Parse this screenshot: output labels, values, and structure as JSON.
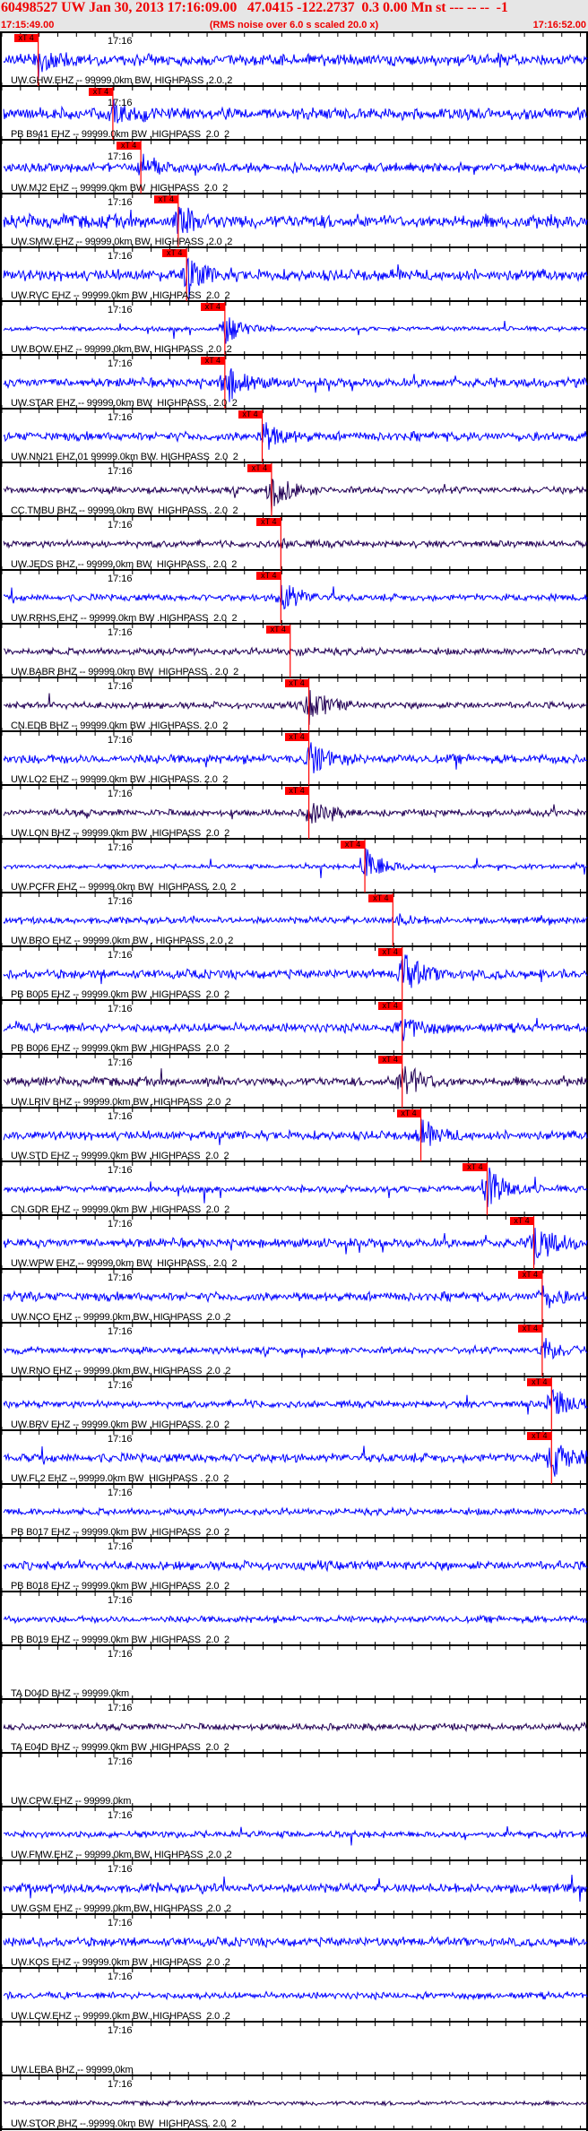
{
  "header": {
    "title": "60498527 UW Jan 30, 2013 17:16:09.00   47.0415 -122.2737  0.3 0.00 Mn st --- -- --  -1",
    "start_time": "17:15:49.00",
    "end_time": "17:16:52.00",
    "rms_note": "(RMS noise over 6.0 s scaled 20.0 x)"
  },
  "axis": {
    "minute_label": "17:16"
  },
  "pick_label": "xT 4",
  "colors": {
    "header_text": "#ee0000",
    "trace": "#0000ff",
    "trace_broadband": "#220055",
    "pick": "#ff0000",
    "header_bg": "#e6e6e6"
  },
  "panels": [
    {
      "label": "UW.GHW.EHZ -- 99999.0km BW. HIGHPASS .2.0. 2",
      "trace": "blue",
      "pick_time": "17:15:52.9"
    },
    {
      "label": "PB B941 EHZ -- 99999.0km BW .HIGHPASS  2.0  2",
      "trace": "blue",
      "pick_time": "17:16:00.9"
    },
    {
      "label": "UW.MJ2 EHZ -- 99999.0km BW  HIGHPASS  2.0  2",
      "trace": "blue",
      "pick_time": "17:16:03.9"
    },
    {
      "label": "UW.SMW.EHZ -- 99999.0km BW. HIGHPASS .2.0 .2",
      "trace": "blue",
      "pick_time": "17:16:07.9"
    },
    {
      "label": "UW.RVC EHZ -- 99999.0km BW .HIGHPASS  2.0  2",
      "trace": "blue",
      "pick_time": "17:16:08.8"
    },
    {
      "label": "UW.BOW.EHZ -- 99999.0km BW. HIGHPASS  2.0 .2",
      "trace": "blue",
      "pick_time": "17:16:12.9"
    },
    {
      "label": "UW.STAR EHZ -- 99999.0km BW  HIGHPASS . 2.0  2",
      "trace": "blue",
      "pick_time": "17:16:12.9"
    },
    {
      "label": "UW.NN21 EHZ.01 99999.0km BW. HIGHPASS  2.0  2",
      "trace": "blue",
      "pick_time": "17:16:16.9"
    },
    {
      "label": "CC.TMBU BHZ -- 99999.0km BW  HIGHPASS . 2.0  2",
      "trace": "dark",
      "pick_time": "17:16:17.9"
    },
    {
      "label": "UW.JEDS BHZ -- 99999.0km BW  HIGHPASS . 2.0  2",
      "trace": "dark",
      "pick_time": "17:16:18.9"
    },
    {
      "label": "UW.RRHS EHZ -- 99999.0km BW .HIGHPASS  2.0  2",
      "trace": "blue",
      "pick_time": "17:16:18.9"
    },
    {
      "label": "UW.BABR BHZ -- 99999.0km BW  HIGHPASS . 2.0  2",
      "trace": "dark",
      "pick_time": "17:16:19.9"
    },
    {
      "label": "CN.EDB BHZ -- 99999.0km BW .HIGHPASS. 2.0  2",
      "trace": "dark",
      "pick_time": "17:16:21.9"
    },
    {
      "label": "UW.LO2 EHZ -- 99999.0km BW .HIGHPASS. 2.0  2",
      "trace": "blue",
      "pick_time": "17:16:21.9"
    },
    {
      "label": "UW.LON BHZ -- 99999.0km BW .HIGHPASS  2.0  2",
      "trace": "dark",
      "pick_time": "17:16:21.9"
    },
    {
      "label": "UW.PCFR EHZ -- 99999.0km BW  HIGHPASS. 2.0  2",
      "trace": "blue",
      "pick_time": "17:16:27.9"
    },
    {
      "label": "UW.BRO EHZ -- 99999.0km BW . HIGHPASS  2.0  2",
      "trace": "blue",
      "pick_time": "17:16:30.9"
    },
    {
      "label": "PB B005 EHZ -- 99999.0km BW .HIGHPASS  2.0  2",
      "trace": "blue",
      "pick_time": "17:16:31.9"
    },
    {
      "label": "PB B006 EHZ -- 99999.0km BW .HIGHPASS  2.0  2",
      "trace": "blue",
      "pick_time": "17:16:31.9"
    },
    {
      "label": "UW.LRIV BHZ -- 99999.0km BW .HIGHPASS  2.0  2",
      "trace": "dark",
      "pick_time": "17:16:31.9"
    },
    {
      "label": "UW.STD EHZ -- 99999.0km BW .HIGHPASS  2.0  2",
      "trace": "blue",
      "pick_time": "17:16:33.9"
    },
    {
      "label": "CN.GDR EHZ -- 99999.0km BW .HIGHPASS  2.0  2",
      "trace": "blue",
      "pick_time": "17:16:41.0"
    },
    {
      "label": "UW.WPW EHZ -- 99999.0km BW  HIGHPASS . 2.0  2",
      "trace": "blue",
      "pick_time": "17:16:46.0"
    },
    {
      "label": "UW.NCO EHZ -- 99999.0km BW. HIGHPASS  2.0 .2",
      "trace": "blue",
      "pick_time": "17:16:46.9"
    },
    {
      "label": "UW.RNO EHZ -- 99999.0km BW. HIGHPASS  2.0 .2",
      "trace": "blue",
      "pick_time": "17:16:46.9"
    },
    {
      "label": "UW.BRV EHZ -- 99999.0km BW .HIGHPASS. 2.0  2",
      "trace": "blue",
      "pick_time": "17:16:47.9"
    },
    {
      "label": "UW.FL2 EHZ -- 99999.0km BW  HIGHPASS . 2.0  2",
      "trace": "blue",
      "pick_time": "17:16:47.9"
    },
    {
      "label": "PB B017 EHZ -- 99999.0km BW .HIGHPASS  2.0  2",
      "trace": "blue"
    },
    {
      "label": "PB B018 EHZ -- 99999.0km BW .HIGHPASS  2.0  2",
      "trace": "blue"
    },
    {
      "label": "PB B019 EHZ -- 99999.0km BW .HIGHPASS  2.0  2",
      "trace": "blue"
    },
    {
      "label": "TA D04D BHZ -- 99999.0km",
      "trace": "none"
    },
    {
      "label": "TA E04D BHZ -- 99999.0km BW .HIGHPASS  2.0  2",
      "trace": "dark"
    },
    {
      "label": "UW.CPW.EHZ -- 99999.0km",
      "trace": "none"
    },
    {
      "label": "UW.FMW.EHZ -- 99999.0km BW. HIGHPASS  2.0 .2",
      "trace": "blue"
    },
    {
      "label": "UW.GSM EHZ -- 99999.0km BW. HIGHPASS  2.0 .2",
      "trace": "blue"
    },
    {
      "label": "UW.KOS EHZ -- 99999.0km BW .HIGHPASS  2.0 .2",
      "trace": "blue"
    },
    {
      "label": "UW.LCW.EHZ -- 99999.0km BW. HIGHPASS  2.0 .2",
      "trace": "blue"
    },
    {
      "label": "UW.LEBA BHZ -- 99999.0km",
      "trace": "none"
    },
    {
      "label": "UW.STOR BHZ --.99999.0km BW  HIGHPASS. 2.0  2",
      "trace": "dark"
    }
  ]
}
